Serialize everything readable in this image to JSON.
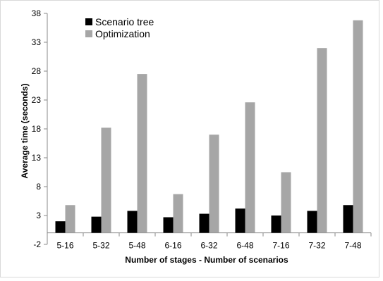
{
  "chart_data": {
    "type": "bar",
    "title": "",
    "xlabel": "Number of stages - Number of scenarios",
    "ylabel": "Average time (seconds)",
    "categories": [
      "5-16",
      "5-32",
      "5-48",
      "6-16",
      "6-32",
      "6-48",
      "7-16",
      "7-32",
      "7-48"
    ],
    "series": [
      {
        "name": "Scenario tree",
        "color": "#000000",
        "values": [
          2.0,
          2.8,
          3.8,
          2.7,
          3.3,
          4.2,
          3.0,
          3.8,
          4.8
        ]
      },
      {
        "name": "Optimization",
        "color": "#a6a6a6",
        "values": [
          4.8,
          18.2,
          27.5,
          6.7,
          17.0,
          22.6,
          10.5,
          32.0,
          36.8
        ]
      }
    ],
    "yticks": [
      -2,
      3,
      8,
      13,
      18,
      23,
      28,
      33,
      38
    ],
    "ylim": [
      -2,
      38
    ],
    "grid": false,
    "legend_position": "top-left"
  }
}
